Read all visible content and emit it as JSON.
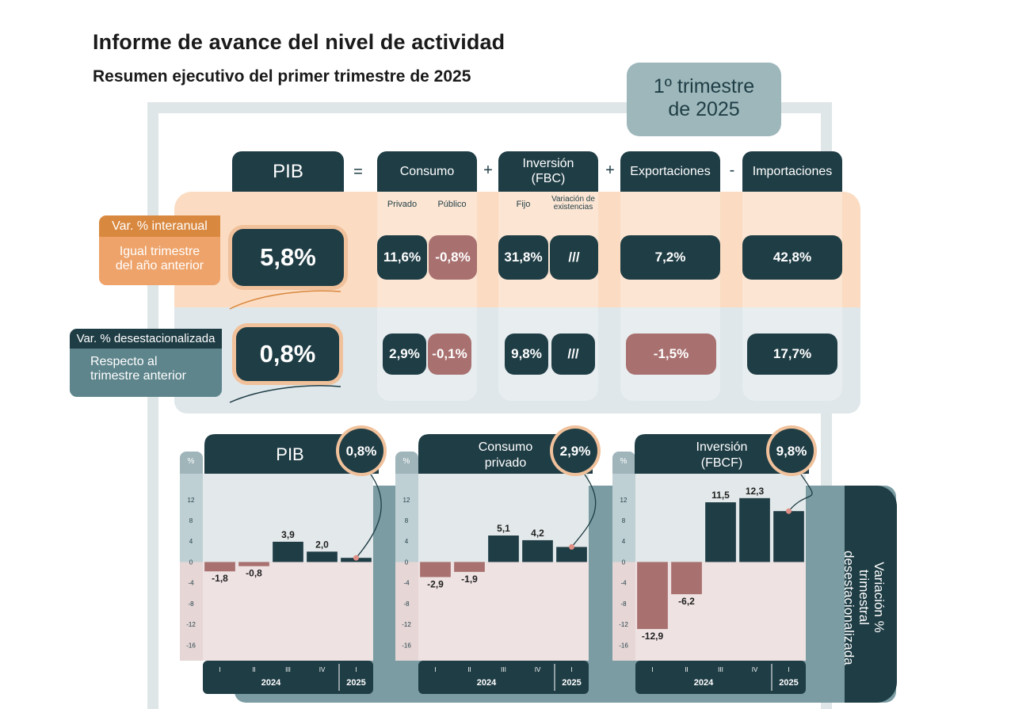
{
  "header": {
    "title": "Informe de avance del nivel de actividad",
    "subtitle": "Resumen ejecutivo del primer trimestre de 2025",
    "quarter_line1": "1º trimestre",
    "quarter_line2": "de 2025"
  },
  "equation": {
    "pib": "PIB",
    "op_equals": "=",
    "consumo": "Consumo",
    "op_plus1": "+",
    "inversion_l1": "Inversión",
    "inversion_l2": "(FBC)",
    "op_plus2": "+",
    "exportaciones": "Exportaciones",
    "op_minus": "-",
    "importaciones": "Importaciones",
    "privado": "Privado",
    "publico": "Público",
    "fijo": "Fijo",
    "variacion_l1": "Variación de",
    "variacion_l2": "existencias"
  },
  "row_interanual": {
    "tag": "Var. % interanual",
    "desc_l1": "Igual trimestre",
    "desc_l2": "del año anterior",
    "pib": "5,8%",
    "privado": "11,6%",
    "publico": "-0,8%",
    "fijo": "31,8%",
    "existencias": "///",
    "exportaciones": "7,2%",
    "importaciones": "42,8%"
  },
  "row_desest": {
    "tag": "Var. % desestacionalizada",
    "desc_l1": "Respecto al",
    "desc_l2": "trimestre anterior",
    "pib": "0,8%",
    "privado": "2,9%",
    "publico": "-0,1%",
    "fijo": "9,8%",
    "existencias": "///",
    "exportaciones": "-1,5%",
    "importaciones": "17,7%"
  },
  "side_label": {
    "line1": "Variación % trimestral",
    "line2": "desestacionalizada"
  },
  "colors": {
    "dark": "#1f3d45",
    "negative": "#a8706f",
    "orange": "#d9883f",
    "highlight": "#f0c19b"
  },
  "chart_data": [
    {
      "type": "bar",
      "title": "PIB",
      "badge": "0,8%",
      "ylabel": "%",
      "categories": [
        "I",
        "II",
        "III",
        "IV",
        "I"
      ],
      "years": [
        "2024",
        "2025"
      ],
      "values": [
        -1.8,
        -0.8,
        3.9,
        2.0,
        0.8
      ],
      "value_labels": [
        "-1,8",
        "-0,8",
        "3,9",
        "2,0",
        ""
      ],
      "yticks": [
        12,
        8,
        4,
        0,
        -4,
        -8,
        -12,
        -16
      ],
      "ylim": [
        -19,
        17
      ]
    },
    {
      "type": "bar",
      "title_l1": "Consumo",
      "title_l2": "privado",
      "badge": "2,9%",
      "ylabel": "%",
      "categories": [
        "I",
        "II",
        "III",
        "IV",
        "I"
      ],
      "years": [
        "2024",
        "2025"
      ],
      "values": [
        -2.9,
        -1.9,
        5.1,
        4.2,
        2.9
      ],
      "value_labels": [
        "-2,9",
        "-1,9",
        "5,1",
        "4,2",
        ""
      ],
      "yticks": [
        12,
        8,
        4,
        0,
        -4,
        -8,
        -12,
        -16
      ],
      "ylim": [
        -19,
        17
      ]
    },
    {
      "type": "bar",
      "title_l1": "Inversión",
      "title_l2": "(FBCF)",
      "badge": "9,8%",
      "ylabel": "%",
      "categories": [
        "I",
        "II",
        "III",
        "IV",
        "I"
      ],
      "years": [
        "2024",
        "2025"
      ],
      "values": [
        -12.9,
        -6.2,
        11.5,
        12.3,
        9.8
      ],
      "value_labels": [
        "-12,9",
        "-6,2",
        "11,5",
        "12,3",
        ""
      ],
      "yticks": [
        12,
        8,
        4,
        0,
        -4,
        -8,
        -12,
        -16
      ],
      "ylim": [
        -19,
        17
      ]
    }
  ]
}
